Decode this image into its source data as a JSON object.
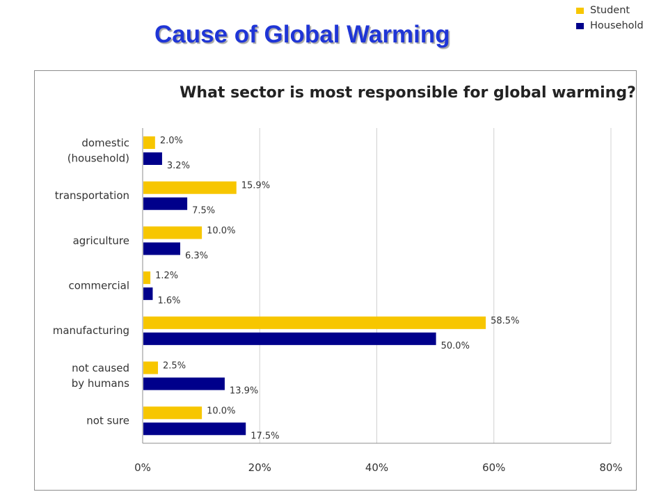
{
  "slide_title": "Cause of Global Warming",
  "legend": [
    {
      "label": "Student",
      "color": "#f7c600"
    },
    {
      "label": "Household",
      "color": "#00008b"
    }
  ],
  "chart_data": {
    "type": "bar",
    "orientation": "horizontal",
    "title": "What sector is most responsible for global warming?",
    "categories": [
      [
        "domestic",
        "(household)"
      ],
      [
        "transportation"
      ],
      [
        "agriculture"
      ],
      [
        "commercial"
      ],
      [
        "manufacturing"
      ],
      [
        "not caused",
        "by humans"
      ],
      [
        "not sure"
      ]
    ],
    "series": [
      {
        "name": "Student",
        "color": "#f7c600",
        "values": [
          2.0,
          15.9,
          10.0,
          1.2,
          58.5,
          2.5,
          10.0
        ],
        "labels": [
          "2.0%",
          "15.9%",
          "10.0%",
          "1.2%",
          "58.5%",
          "2.5%",
          "10.0%"
        ]
      },
      {
        "name": "Household",
        "color": "#00008b",
        "values": [
          3.2,
          7.5,
          6.3,
          1.6,
          50.0,
          13.9,
          17.5
        ],
        "labels": [
          "3.2%",
          "7.5%",
          "6.3%",
          "1.6%",
          "50.0%",
          "13.9%",
          "17.5%"
        ]
      }
    ],
    "xlim": [
      0,
      80
    ],
    "xticks": [
      0,
      20,
      40,
      60,
      80
    ],
    "xtick_labels": [
      "0%",
      "20%",
      "40%",
      "60%",
      "80%"
    ],
    "grid": true,
    "legend_position": "top-right"
  }
}
